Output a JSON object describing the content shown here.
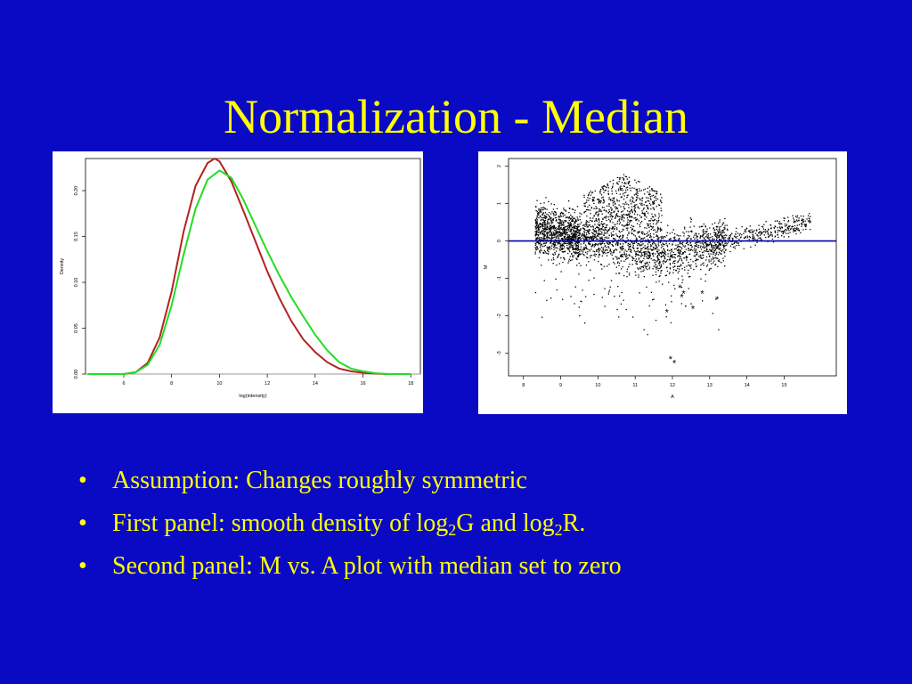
{
  "slide": {
    "title": "Normalization - Median",
    "bullet_glyph": "•",
    "bullets": {
      "b1": {
        "text": "Assumption: Changes roughly symmetric"
      },
      "b2": {
        "p1": "First panel: smooth density of log",
        "sub1": "2",
        "p2": "G and log",
        "sub2": "2",
        "p3": "R."
      },
      "b3": {
        "text": "Second panel: M vs. A plot with median set to zero"
      }
    }
  },
  "colors": {
    "background": "#0a0ac4",
    "title": "#ffff00",
    "series_red": "#b22222",
    "series_green": "#22dd22",
    "median_line": "#0000aa",
    "points": "#000000",
    "outliers": "#22cc22"
  },
  "chart_data": [
    {
      "type": "line",
      "xlabel": "log(intensity)",
      "ylabel": "Density",
      "xlim": [
        4.4,
        18.4
      ],
      "ylim": [
        0,
        0.235
      ],
      "x_ticks": [
        "6",
        "8",
        "10",
        "12",
        "14",
        "16",
        "18"
      ],
      "y_ticks": [
        "0.00",
        "0.05",
        "0.10",
        "0.15",
        "0.20"
      ],
      "series": [
        {
          "color": "red",
          "x": [
            4.5,
            6.0,
            6.5,
            7.0,
            7.5,
            8.0,
            8.5,
            9.0,
            9.5,
            9.8,
            10.0,
            10.5,
            11.0,
            11.5,
            12.0,
            12.5,
            13.0,
            13.5,
            14.0,
            14.5,
            15.0,
            15.5,
            16.0,
            16.5,
            17.0,
            18.0
          ],
          "y": [
            0.0,
            0.0,
            0.002,
            0.012,
            0.04,
            0.09,
            0.155,
            0.205,
            0.23,
            0.235,
            0.232,
            0.21,
            0.178,
            0.145,
            0.112,
            0.083,
            0.058,
            0.038,
            0.024,
            0.013,
            0.006,
            0.003,
            0.0015,
            0.0005,
            0.0,
            0.0
          ]
        },
        {
          "color": "green",
          "x": [
            4.5,
            6.0,
            6.5,
            7.0,
            7.5,
            8.0,
            8.5,
            9.0,
            9.5,
            10.0,
            10.5,
            11.0,
            11.5,
            12.0,
            12.5,
            13.0,
            13.5,
            14.0,
            14.5,
            15.0,
            15.5,
            16.0,
            16.5,
            17.0,
            18.0
          ],
          "y": [
            0.0,
            0.0,
            0.002,
            0.01,
            0.032,
            0.075,
            0.13,
            0.18,
            0.212,
            0.222,
            0.214,
            0.19,
            0.162,
            0.134,
            0.108,
            0.084,
            0.063,
            0.043,
            0.026,
            0.013,
            0.006,
            0.003,
            0.001,
            0.0,
            0.0
          ]
        }
      ]
    },
    {
      "type": "scatter",
      "xlabel": "A",
      "ylabel": "M",
      "xlim": [
        7.6,
        16.4
      ],
      "ylim": [
        -3.6,
        2.2
      ],
      "x_ticks": [
        "8",
        "9",
        "10",
        "11",
        "12",
        "13",
        "14",
        "15"
      ],
      "y_ticks": [
        "-3",
        "-2",
        "-1",
        "0",
        "1",
        "2"
      ],
      "median_line_y": 0,
      "highlighted_points": {
        "x": [
          11.85,
          12.2,
          12.3,
          12.25,
          12.55,
          12.8,
          13.2,
          11.95,
          12.05
        ],
        "y": [
          -1.9,
          -1.25,
          -1.4,
          -1.5,
          -1.8,
          -1.4,
          -1.55,
          -3.15,
          -3.25
        ]
      }
    }
  ]
}
